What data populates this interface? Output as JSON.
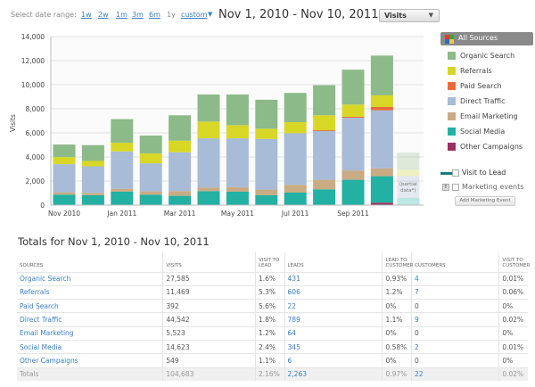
{
  "toolbar": {
    "range_label": "Select date range:",
    "ranges": [
      "1w",
      "2w",
      "1m",
      "3m",
      "6m",
      "1y",
      "custom"
    ],
    "date_range": "Nov 1, 2010 - Nov 10, 2011",
    "metric": "Visits"
  },
  "chart_data": {
    "type": "bar",
    "stacked": true,
    "ylabel": "Visits",
    "ylim": [
      0,
      14000
    ],
    "yticks": [
      "0",
      "2,000",
      "4,000",
      "6,000",
      "8,000",
      "10,000",
      "12,000",
      "14,000"
    ],
    "xtick_labels": [
      "Nov 2010",
      "Jan 2011",
      "Mar 2011",
      "May 2011",
      "Jul 2011",
      "Sep 2011"
    ],
    "categories": [
      "Nov 2010",
      "Dec 2010",
      "Jan 2011",
      "Feb 2011",
      "Mar 2011",
      "Apr 2011",
      "May 2011",
      "Jun 2011",
      "Jul 2011",
      "Aug 2011",
      "Sep 2011",
      "Oct 2011",
      "Nov 2011"
    ],
    "partial_note": "(partial data*)",
    "grid": true,
    "series": [
      {
        "name": "Other Campaigns",
        "color": "#9e2f62",
        "values": [
          0,
          0,
          0,
          0,
          30,
          0,
          0,
          0,
          0,
          0,
          0,
          200,
          0
        ]
      },
      {
        "name": "Social Media",
        "color": "#22b1a3",
        "values": [
          870,
          820,
          1115,
          870,
          740,
          1165,
          1115,
          820,
          1040,
          1310,
          2105,
          2200,
          620
        ]
      },
      {
        "name": "Email Marketing",
        "color": "#c9ab84",
        "values": [
          195,
          195,
          245,
          270,
          395,
          295,
          375,
          470,
          645,
          795,
          770,
          650,
          0
        ]
      },
      {
        "name": "Direct Traffic",
        "color": "#a8bbd7",
        "values": [
          2335,
          2205,
          3100,
          2330,
          3225,
          4090,
          4060,
          4210,
          4285,
          4045,
          4385,
          4830,
          1810
        ]
      },
      {
        "name": "Paid Search",
        "color": "#ee6a3b",
        "values": [
          0,
          0,
          0,
          0,
          0,
          0,
          0,
          0,
          0,
          70,
          75,
          270,
          0
        ]
      },
      {
        "name": "Referrals",
        "color": "#d8d726",
        "values": [
          590,
          450,
          720,
          820,
          960,
          1390,
          1090,
          845,
          920,
          1240,
          1015,
          970,
          495
        ]
      },
      {
        "name": "Organic Search",
        "color": "#8cba88",
        "values": [
          1040,
          1310,
          1960,
          1485,
          2110,
          2250,
          2550,
          2405,
          2430,
          2500,
          2900,
          3300,
          1435
        ]
      }
    ]
  },
  "legend": {
    "all": "All Sources",
    "items": [
      {
        "label": "Organic Search",
        "color": "#8cba88"
      },
      {
        "label": "Referrals",
        "color": "#d8d726"
      },
      {
        "label": "Paid Search",
        "color": "#ee6a3b"
      },
      {
        "label": "Direct Traffic",
        "color": "#a8bbd7"
      },
      {
        "label": "Email Marketing",
        "color": "#c9ab84"
      },
      {
        "label": "Social Media",
        "color": "#22b1a3"
      },
      {
        "label": "Other Campaigns",
        "color": "#9e2f62"
      }
    ],
    "visit_to_lead": "Visit to Lead",
    "marketing_events": "Marketing events",
    "add_event": "Add Marketing Event"
  },
  "totals": {
    "title": "Totals for Nov 1, 2010 - Nov 10, 2011",
    "headers": [
      "SOURCES",
      "VISITS",
      "VISIT TO LEAD",
      "LEADS",
      "LEAD TO CUSTOMER",
      "CUSTOMERS",
      "VISIT TO CUSTOMER"
    ],
    "rows": [
      [
        "Organic Search",
        "27,585",
        "1.6%",
        "431",
        "0.93%",
        "4",
        "0.01%"
      ],
      [
        "Referrals",
        "11,469",
        "5.3%",
        "606",
        "1.2%",
        "7",
        "0.06%"
      ],
      [
        "Paid Search",
        "392",
        "5.6%",
        "22",
        "0%",
        "0",
        "0%"
      ],
      [
        "Direct Traffic",
        "44,542",
        "1.8%",
        "789",
        "1.1%",
        "9",
        "0.02%"
      ],
      [
        "Email Marketing",
        "5,523",
        "1.2%",
        "64",
        "0%",
        "0",
        "0%"
      ],
      [
        "Social Media",
        "14,623",
        "2.4%",
        "345",
        "0.58%",
        "2",
        "0.01%"
      ],
      [
        "Other Campaigns",
        "549",
        "1.1%",
        "6",
        "0%",
        "0",
        "0%"
      ]
    ],
    "total_row": [
      "Totals",
      "104,683",
      "2.16%",
      "2,263",
      "0.97%",
      "22",
      "0.02%"
    ]
  }
}
